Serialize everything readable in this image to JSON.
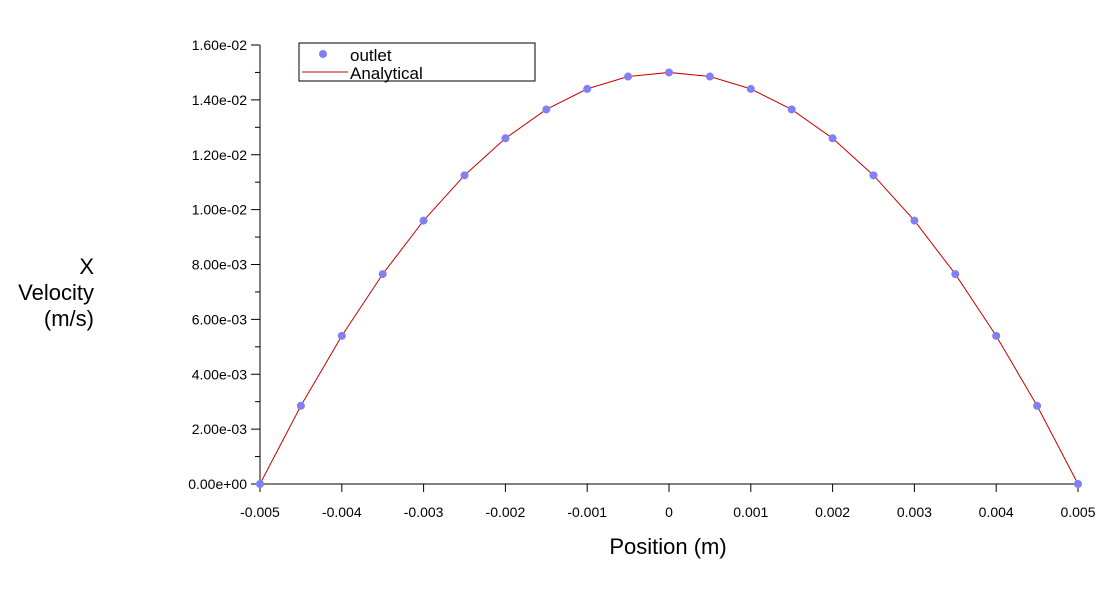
{
  "chart_data": {
    "type": "scatter",
    "xlabel": "Position (m)",
    "ylabel": [
      "X",
      "Velocity",
      "(m/s)"
    ],
    "xlim": [
      -0.005,
      0.005
    ],
    "ylim": [
      0,
      0.016
    ],
    "x_ticks": [
      -0.005,
      -0.004,
      -0.003,
      -0.002,
      -0.001,
      0,
      0.001,
      0.002,
      0.003,
      0.004,
      0.005
    ],
    "x_tick_labels": [
      "-0.005",
      "-0.004",
      "-0.003",
      "-0.002",
      "-0.001",
      "0",
      "0.001",
      "0.002",
      "0.003",
      "0.004",
      "0.005"
    ],
    "y_ticks": [
      0,
      0.002,
      0.004,
      0.006,
      0.008,
      0.01,
      0.012,
      0.014,
      0.016
    ],
    "y_tick_labels": [
      "0.00e+00",
      "2.00e-03",
      "4.00e-03",
      "6.00e-03",
      "8.00e-03",
      "1.00e-02",
      "1.20e-02",
      "1.40e-02",
      "1.60e-02"
    ],
    "y_minor_ticks": [
      0.001,
      0.003,
      0.005,
      0.007,
      0.009,
      0.011,
      0.013,
      0.015
    ],
    "grid": false,
    "legend_position": "top-left",
    "series": [
      {
        "name": "outlet",
        "kind": "points",
        "color": "#8080f0",
        "x": [
          -0.005,
          -0.0045,
          -0.004,
          -0.0035,
          -0.003,
          -0.0025,
          -0.002,
          -0.0015,
          -0.001,
          -0.0005,
          0,
          0.0005,
          0.001,
          0.0015,
          0.002,
          0.0025,
          0.003,
          0.0035,
          0.004,
          0.0045,
          0.005
        ],
        "y": [
          0,
          0.00285,
          0.0054,
          0.00765,
          0.0096,
          0.01125,
          0.0126,
          0.01365,
          0.0144,
          0.01485,
          0.015,
          0.01485,
          0.0144,
          0.01365,
          0.0126,
          0.01125,
          0.0096,
          0.00765,
          0.0054,
          0.00285,
          0
        ]
      },
      {
        "name": "Analytical",
        "kind": "line",
        "color": "#cc0000",
        "x": [
          -0.005,
          -0.0045,
          -0.004,
          -0.0035,
          -0.003,
          -0.0025,
          -0.002,
          -0.0015,
          -0.001,
          -0.0005,
          0,
          0.0005,
          0.001,
          0.0015,
          0.002,
          0.0025,
          0.003,
          0.0035,
          0.004,
          0.0045,
          0.005
        ],
        "y": [
          0,
          0.00285,
          0.0054,
          0.00765,
          0.0096,
          0.01125,
          0.0126,
          0.01365,
          0.0144,
          0.01485,
          0.015,
          0.01485,
          0.0144,
          0.01365,
          0.0126,
          0.01125,
          0.0096,
          0.00765,
          0.0054,
          0.00285,
          0
        ]
      }
    ]
  }
}
